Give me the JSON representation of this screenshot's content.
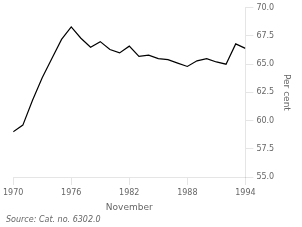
{
  "chart_data": {
    "type": "line",
    "xlabel": "November",
    "ylabel": "Per cent",
    "source": "Source: Cat. no. 6302.0",
    "x": [
      1970,
      1971,
      1972,
      1973,
      1974,
      1975,
      1976,
      1977,
      1978,
      1979,
      1980,
      1981,
      1982,
      1983,
      1984,
      1985,
      1986,
      1987,
      1988,
      1989,
      1990,
      1991,
      1992,
      1993,
      1994
    ],
    "values": [
      59.0,
      59.6,
      61.8,
      63.8,
      65.5,
      67.2,
      68.3,
      67.3,
      66.5,
      67.0,
      66.3,
      66.0,
      66.6,
      65.7,
      65.8,
      65.5,
      65.4,
      65.1,
      64.8,
      65.3,
      65.5,
      65.2,
      65.0,
      66.8,
      66.4
    ],
    "color": "#000000",
    "xlim": [
      1970,
      1994
    ],
    "xticks": [
      1970,
      1976,
      1982,
      1988,
      1994
    ],
    "ylim": [
      55.0,
      70.0
    ],
    "yticks": [
      {
        "value": 55.0,
        "label": "55.0"
      },
      57.5,
      {
        "value": 60.0,
        "label": "60.0"
      },
      62.5,
      {
        "value": 65.0,
        "label": "65.0"
      },
      67.5,
      {
        "value": 70.0,
        "label": "70.0"
      }
    ],
    "grid": false
  }
}
